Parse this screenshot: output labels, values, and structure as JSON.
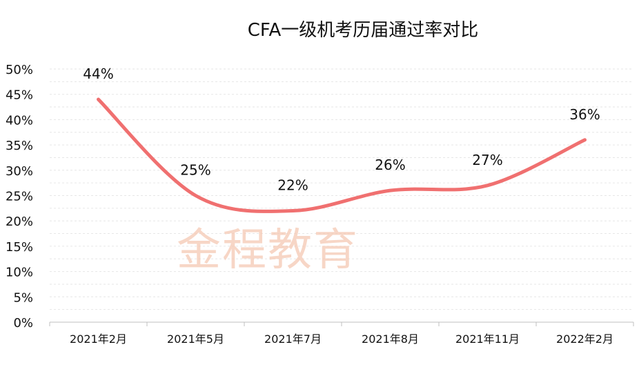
{
  "chart_data": {
    "type": "line",
    "title": "CFA一级机考历届通过率对比",
    "categories": [
      "2021年2月",
      "2021年5月",
      "2021年7月",
      "2021年8月",
      "2021年11月",
      "2022年2月"
    ],
    "values": [
      44,
      25,
      22,
      26,
      27,
      36
    ],
    "data_labels": [
      "44%",
      "25%",
      "22%",
      "26%",
      "27%",
      "36%"
    ],
    "yticks": [
      "0%",
      "5%",
      "10%",
      "15%",
      "20%",
      "25%",
      "30%",
      "35%",
      "40%",
      "45%",
      "50%"
    ],
    "ylim": [
      0,
      50
    ],
    "grid": true,
    "smooth": true,
    "line_color": "#f07070",
    "watermark": "金程教育"
  }
}
